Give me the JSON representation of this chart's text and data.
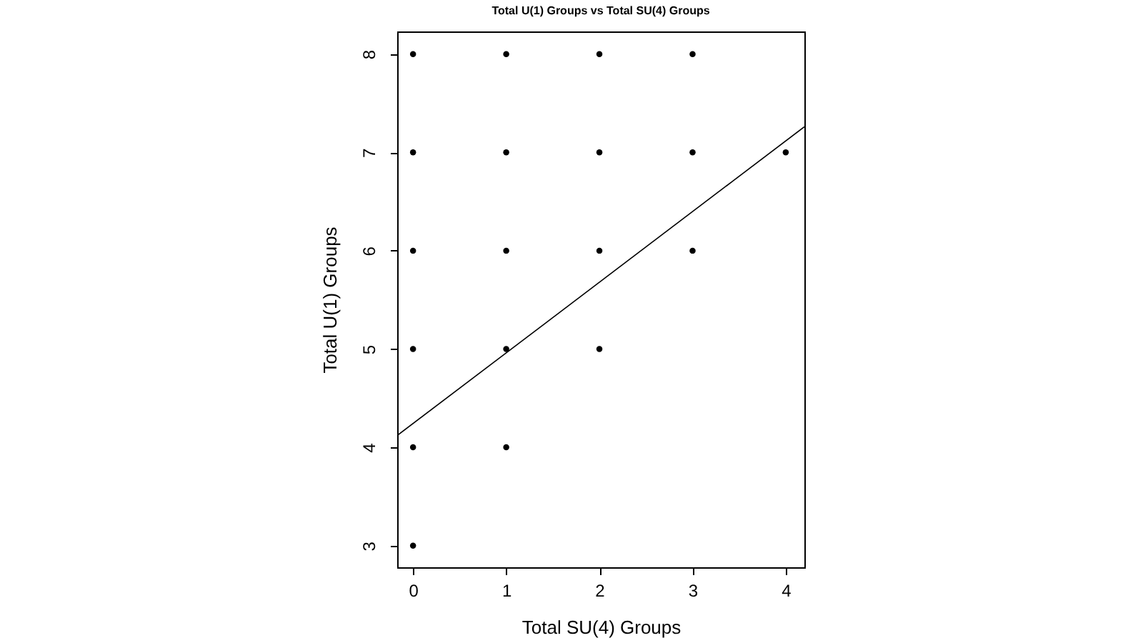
{
  "chart_data": {
    "type": "scatter",
    "title": "Total U(1) Groups vs Total SU(4) Groups",
    "xlabel": "Total SU(4) Groups",
    "ylabel": "Total U(1) Groups",
    "xlim": [
      -0.17,
      4.2
    ],
    "ylim": [
      2.78,
      8.23
    ],
    "xticks": [
      0,
      1,
      2,
      3,
      4
    ],
    "yticks": [
      3,
      4,
      5,
      6,
      7,
      8
    ],
    "grid": false,
    "series": [
      {
        "marker": "circle",
        "color": "#000000",
        "x": [
          0,
          0,
          0,
          0,
          0,
          0,
          1,
          1,
          1,
          1,
          1,
          2,
          2,
          2,
          2,
          3,
          3,
          3,
          4
        ],
        "values": [
          3,
          4,
          5,
          6,
          7,
          8,
          4,
          5,
          6,
          7,
          8,
          5,
          6,
          7,
          8,
          6,
          7,
          8,
          7
        ]
      },
      {
        "type": "line",
        "marker": "none",
        "color": "#000000",
        "x": [
          -0.17,
          4.2
        ],
        "values": [
          4.12,
          7.26
        ]
      }
    ]
  }
}
